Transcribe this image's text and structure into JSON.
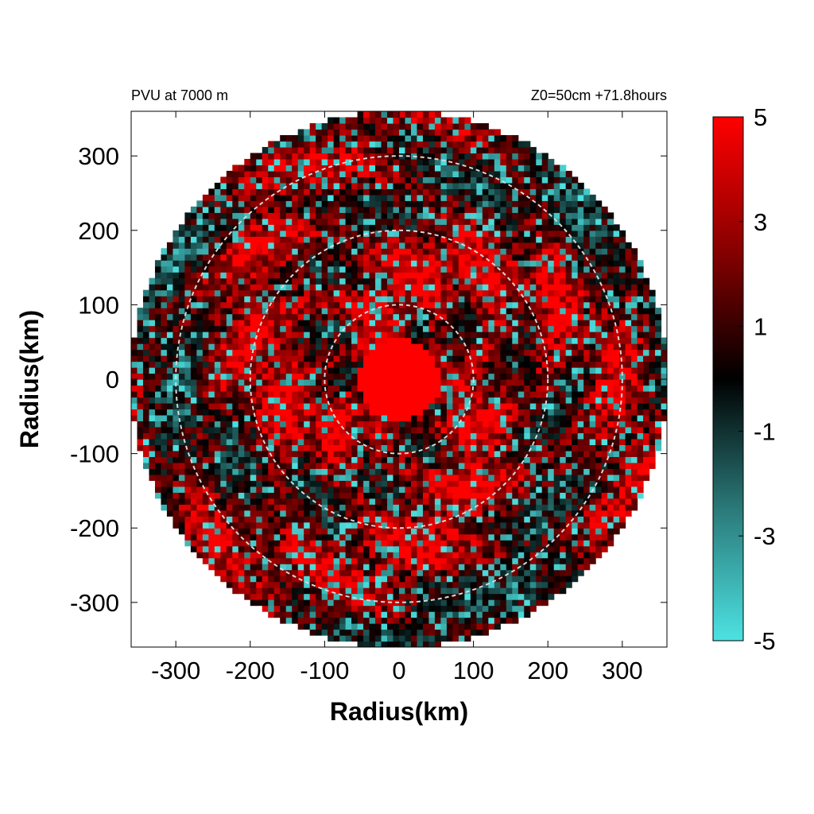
{
  "chart_data": {
    "type": "heatmap",
    "title_left": "PVU at  7000 m",
    "title_right": "Z0=50cm  +71.8hours",
    "xlabel": "Radius(km)",
    "ylabel": "Radius(km)",
    "xlim": [
      -360,
      360
    ],
    "ylim": [
      -360,
      360
    ],
    "x_ticks": [
      -300,
      -200,
      -100,
      0,
      100,
      200,
      300
    ],
    "y_ticks": [
      300,
      200,
      100,
      0,
      -100,
      -200,
      -300
    ],
    "x_tick_labels": [
      "-300",
      "-200",
      "-100",
      "0",
      "100",
      "200",
      "300"
    ],
    "y_tick_labels": [
      "300",
      "200",
      "100",
      "0",
      "-100",
      "-200",
      "-300"
    ],
    "domain_radius_km": 360,
    "reference_circles_km": [
      100,
      200,
      300
    ],
    "colorbar": {
      "range": [
        -5,
        5
      ],
      "ticks": [
        5,
        3,
        1,
        -1,
        -3,
        -5
      ],
      "tick_labels": [
        "5",
        "3",
        "1",
        "-1",
        "-3",
        "-5"
      ],
      "colors": {
        "max": "#ff0000",
        "mid": "#000000",
        "min": "#4de2e2"
      }
    },
    "description_of_field": {
      "core": {
        "radius_km": 55,
        "value": 5
      },
      "ring_means": [
        {
          "r_km": 80,
          "mean": 2.5
        },
        {
          "r_km": 150,
          "mean": 3.0
        },
        {
          "r_km": 230,
          "mean": 2.2
        },
        {
          "r_km": 300,
          "mean": 1.6
        },
        {
          "r_km": 360,
          "mean": 1.2
        }
      ]
    },
    "grid": false
  }
}
